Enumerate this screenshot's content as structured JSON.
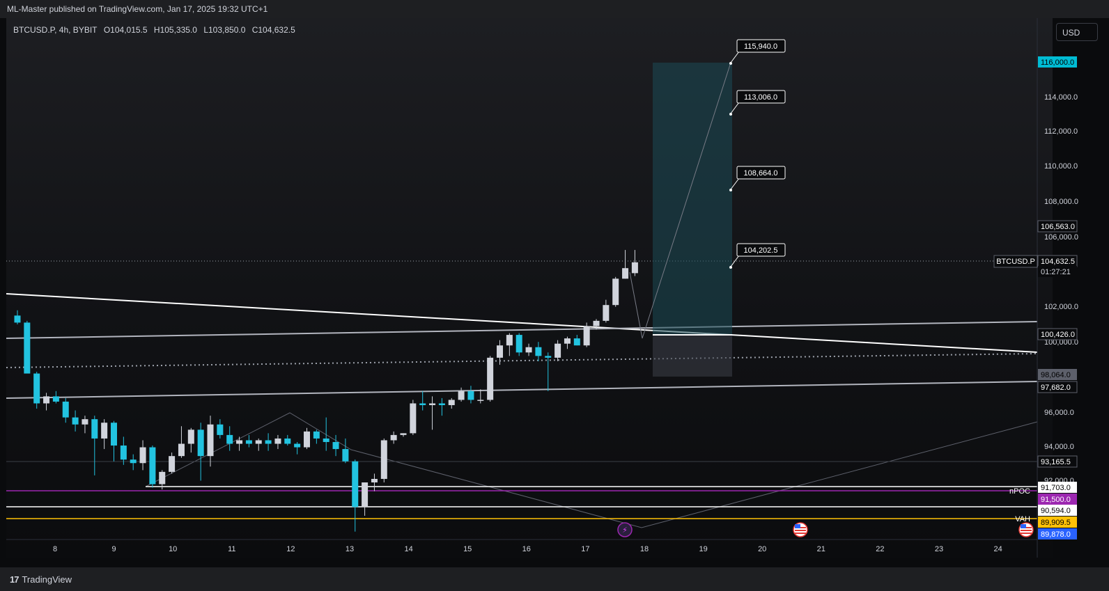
{
  "header": {
    "published": "ML-Master published on TradingView.com, Jan 17, 2025 19:32 UTC+1"
  },
  "legend": {
    "symbol": "BTCUSD.P, 4h, BYBIT",
    "open": "O104,015.5",
    "high": "H105,335.0",
    "low": "L103,850.0",
    "close": "C104,632.5"
  },
  "currency": "USD",
  "price_axis": {
    "ticks": [
      "114,000.0",
      "112,000.0",
      "110,000.0",
      "108,000.0",
      "106,000.0",
      "102,000.0",
      "100,000.0",
      "96,000.0",
      "94,000.0",
      "92,000.0"
    ],
    "labels": [
      {
        "text": "116,000.0",
        "bg": "#00bcd4",
        "fg": "#000000"
      },
      {
        "text": "106,563.0",
        "bg": "#0a0b0d",
        "fg": "#ffffff",
        "outline": true
      },
      {
        "text": "104,632.5",
        "bg": "#0a0b0d",
        "fg": "#ffffff",
        "outline": true
      },
      {
        "text": "01:27:21",
        "bg": "#0a0b0d",
        "fg": "#d1d4dc",
        "outline": false
      },
      {
        "text": "100,426.0",
        "bg": "#0a0b0d",
        "fg": "#ffffff",
        "outline": true
      },
      {
        "text": "98,064.0",
        "bg": "#5d606b",
        "fg": "#000000"
      },
      {
        "text": "97,682.0",
        "bg": "#0a0b0d",
        "fg": "#ffffff",
        "outline": true
      },
      {
        "text": "93,165.5",
        "bg": "#0a0b0d",
        "fg": "#ffffff",
        "outline": true
      },
      {
        "text": "91,703.0",
        "bg": "#ffffff",
        "fg": "#000000"
      },
      {
        "text": "91,500.0",
        "bg": "#9c27b0",
        "fg": "#ffffff"
      },
      {
        "text": "90,594.0",
        "bg": "#ffffff",
        "fg": "#000000"
      },
      {
        "text": "89,909.5",
        "bg": "#ffc107",
        "fg": "#000000"
      },
      {
        "text": "89,878.0",
        "bg": "#2962ff",
        "fg": "#ffffff"
      }
    ]
  },
  "symbol_tag": "BTCUSD.P",
  "line_labels": {
    "npoc": "nPOC",
    "vah": "VAH"
  },
  "target_callouts": [
    "115,940.0",
    "113,006.0",
    "108,664.0",
    "104,202.5"
  ],
  "time_axis": {
    "ticks": [
      "8",
      "9",
      "10",
      "11",
      "12",
      "13",
      "14",
      "15",
      "16",
      "17",
      "18",
      "19",
      "20",
      "21",
      "22",
      "23",
      "24"
    ]
  },
  "brand": "TradingView",
  "colors": {
    "bull": "#d1d4dc",
    "bear": "#22c3e0",
    "accent": "#00bcd4",
    "poc": "#9c27b0",
    "vah": "#ffc107"
  },
  "candles": [
    {
      "o": 101600,
      "h": 101900,
      "l": 101100,
      "c": 101200
    },
    {
      "o": 101200,
      "h": 101300,
      "l": 98400,
      "c": 98300
    },
    {
      "o": 98300,
      "h": 98400,
      "l": 96300,
      "c": 96600
    },
    {
      "o": 96600,
      "h": 97200,
      "l": 96200,
      "c": 97000
    },
    {
      "o": 97000,
      "h": 97300,
      "l": 96600,
      "c": 96700
    },
    {
      "o": 96700,
      "h": 96900,
      "l": 95500,
      "c": 95800
    },
    {
      "o": 95800,
      "h": 96200,
      "l": 95000,
      "c": 95400
    },
    {
      "o": 95400,
      "h": 95900,
      "l": 94900,
      "c": 95700
    },
    {
      "o": 95700,
      "h": 95900,
      "l": 92500,
      "c": 94600
    },
    {
      "o": 94600,
      "h": 95700,
      "l": 94000,
      "c": 95500
    },
    {
      "o": 95500,
      "h": 95600,
      "l": 93300,
      "c": 94200
    },
    {
      "o": 94200,
      "h": 94700,
      "l": 93100,
      "c": 93400
    },
    {
      "o": 93400,
      "h": 93700,
      "l": 92800,
      "c": 93200
    },
    {
      "o": 93200,
      "h": 94500,
      "l": 92800,
      "c": 94100
    },
    {
      "o": 94100,
      "h": 94200,
      "l": 91800,
      "c": 92000
    },
    {
      "o": 92000,
      "h": 92800,
      "l": 91700,
      "c": 92700
    },
    {
      "o": 92700,
      "h": 93800,
      "l": 92600,
      "c": 93600
    },
    {
      "o": 93600,
      "h": 95300,
      "l": 93500,
      "c": 94300
    },
    {
      "o": 94300,
      "h": 95200,
      "l": 93800,
      "c": 95100
    },
    {
      "o": 95100,
      "h": 95500,
      "l": 92200,
      "c": 93600
    },
    {
      "o": 93600,
      "h": 95900,
      "l": 93000,
      "c": 95400
    },
    {
      "o": 95400,
      "h": 95700,
      "l": 94600,
      "c": 94800
    },
    {
      "o": 94800,
      "h": 95300,
      "l": 93900,
      "c": 94300
    },
    {
      "o": 94300,
      "h": 94700,
      "l": 93900,
      "c": 94500
    },
    {
      "o": 94500,
      "h": 94800,
      "l": 94100,
      "c": 94300
    },
    {
      "o": 94300,
      "h": 94600,
      "l": 93900,
      "c": 94500
    },
    {
      "o": 94500,
      "h": 94900,
      "l": 93900,
      "c": 94300
    },
    {
      "o": 94300,
      "h": 94800,
      "l": 94000,
      "c": 94600
    },
    {
      "o": 94600,
      "h": 94800,
      "l": 94200,
      "c": 94300
    },
    {
      "o": 94300,
      "h": 94400,
      "l": 93700,
      "c": 94100
    },
    {
      "o": 94100,
      "h": 95200,
      "l": 94000,
      "c": 95000
    },
    {
      "o": 95000,
      "h": 95100,
      "l": 94300,
      "c": 94600
    },
    {
      "o": 94600,
      "h": 95800,
      "l": 93900,
      "c": 94400
    },
    {
      "o": 94400,
      "h": 94800,
      "l": 93600,
      "c": 94000
    },
    {
      "o": 94000,
      "h": 94600,
      "l": 93200,
      "c": 93300
    },
    {
      "o": 93300,
      "h": 93400,
      "l": 89300,
      "c": 90700
    },
    {
      "o": 90700,
      "h": 92100,
      "l": 90200,
      "c": 92100
    },
    {
      "o": 92100,
      "h": 92600,
      "l": 91600,
      "c": 92300
    },
    {
      "o": 92300,
      "h": 94600,
      "l": 92100,
      "c": 94500
    },
    {
      "o": 94500,
      "h": 95000,
      "l": 94300,
      "c": 94800
    },
    {
      "o": 94800,
      "h": 94900,
      "l": 94700,
      "c": 94900
    },
    {
      "o": 94900,
      "h": 96800,
      "l": 94800,
      "c": 96600
    },
    {
      "o": 96600,
      "h": 97300,
      "l": 96200,
      "c": 96500
    },
    {
      "o": 96500,
      "h": 97000,
      "l": 95100,
      "c": 96600
    },
    {
      "o": 96600,
      "h": 96900,
      "l": 95900,
      "c": 96500
    },
    {
      "o": 96500,
      "h": 96900,
      "l": 96300,
      "c": 96800
    },
    {
      "o": 96800,
      "h": 97500,
      "l": 96700,
      "c": 97300
    },
    {
      "o": 97300,
      "h": 97600,
      "l": 96600,
      "c": 96800
    },
    {
      "o": 96800,
      "h": 97400,
      "l": 96600,
      "c": 96800
    },
    {
      "o": 96800,
      "h": 99300,
      "l": 96700,
      "c": 99200
    },
    {
      "o": 99200,
      "h": 100200,
      "l": 98800,
      "c": 99900
    },
    {
      "o": 99900,
      "h": 100600,
      "l": 99300,
      "c": 100500
    },
    {
      "o": 100500,
      "h": 100600,
      "l": 99300,
      "c": 99500
    },
    {
      "o": 99500,
      "h": 100000,
      "l": 99300,
      "c": 99800
    },
    {
      "o": 99800,
      "h": 100100,
      "l": 99000,
      "c": 99300
    },
    {
      "o": 99300,
      "h": 99500,
      "l": 97300,
      "c": 99200
    },
    {
      "o": 99200,
      "h": 100200,
      "l": 99000,
      "c": 100000
    },
    {
      "o": 100000,
      "h": 100400,
      "l": 99700,
      "c": 100300
    },
    {
      "o": 100300,
      "h": 100500,
      "l": 99900,
      "c": 99900
    },
    {
      "o": 99900,
      "h": 101200,
      "l": 99800,
      "c": 101000
    },
    {
      "o": 101000,
      "h": 101400,
      "l": 100800,
      "c": 101300
    },
    {
      "o": 101300,
      "h": 102500,
      "l": 101200,
      "c": 102200
    },
    {
      "o": 102200,
      "h": 103800,
      "l": 102100,
      "c": 103700
    },
    {
      "o": 103700,
      "h": 105335,
      "l": 103700,
      "c": 104300
    },
    {
      "o": 104015,
      "h": 105335,
      "l": 103850,
      "c": 104632
    }
  ]
}
